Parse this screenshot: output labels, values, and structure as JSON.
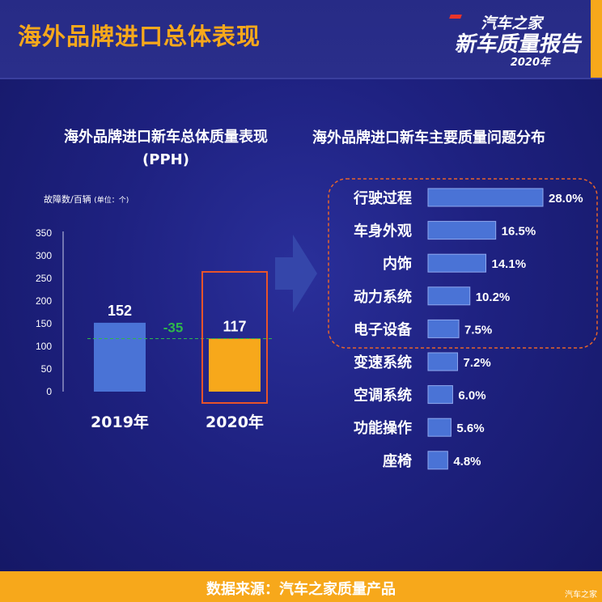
{
  "header": {
    "title": "海外品牌进口总体表现",
    "brand_line1": "汽车之家",
    "brand_line2": "新车质量报告",
    "brand_year": "2020年"
  },
  "left_panel": {
    "title_line1": "海外品牌进口新车总体质量表现",
    "title_line2": "(PPH)",
    "unit_main": "故障数/百辆",
    "unit_note": "(单位：个)"
  },
  "right_panel": {
    "title": "海外品牌进口新车主要质量问题分布"
  },
  "chart_data": [
    {
      "type": "bar",
      "title": "海外品牌进口新车总体质量表现",
      "subtitle": "(PPH)",
      "ylabel": "故障数/百辆",
      "categories": [
        "2019年",
        "2020年"
      ],
      "values": [
        152,
        117
      ],
      "ylim": [
        0,
        350
      ],
      "yticks": [
        0,
        50,
        100,
        150,
        200,
        250,
        300,
        350
      ],
      "grid": false,
      "annotations": [
        "-35"
      ],
      "colors": [
        "#4a73d6",
        "#f7a81b"
      ],
      "highlight_color": "#e8542a",
      "diff_color": "#2eb84b"
    },
    {
      "type": "bar",
      "orientation": "horizontal",
      "title": "海外品牌进口新车主要质量问题分布",
      "categories": [
        "行驶过程",
        "车身外观",
        "内饰",
        "动力系统",
        "电子设备",
        "变速系统",
        "空调系统",
        "功能操作",
        "座椅"
      ],
      "values": [
        28.0,
        16.5,
        14.1,
        10.2,
        7.5,
        7.2,
        6.0,
        5.6,
        4.8
      ],
      "value_labels": [
        "28.0%",
        "16.5%",
        "14.1%",
        "10.2%",
        "7.5%",
        "7.2%",
        "6.0%",
        "5.6%",
        "4.8%"
      ],
      "highlighted_top": 5,
      "bar_color": "#4a73d6"
    }
  ],
  "footer": {
    "source": "数据来源：汽车之家质量产品",
    "watermark": "汽车之家"
  }
}
